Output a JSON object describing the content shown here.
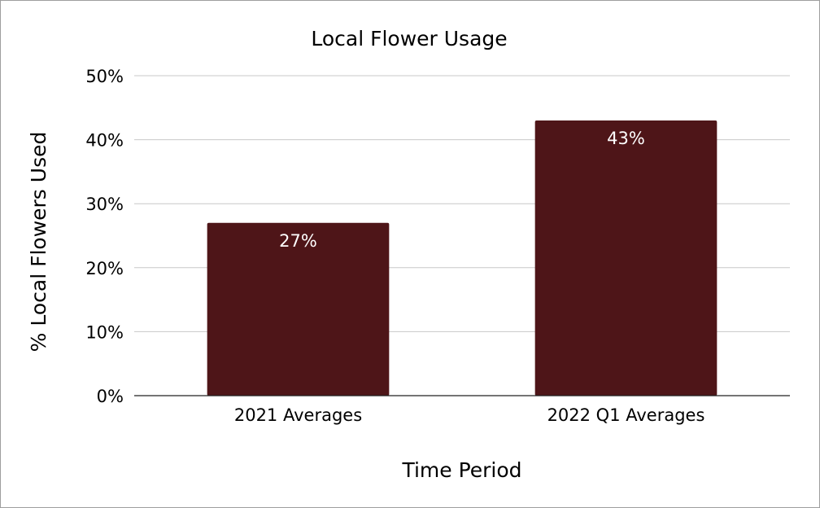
{
  "chart_data": {
    "type": "bar",
    "title": "Local Flower Usage",
    "xlabel": "Time Period",
    "ylabel": "% Local Flowers Used",
    "categories": [
      "2021 Averages",
      "2022 Q1 Averages"
    ],
    "values": [
      27,
      43
    ],
    "data_labels": [
      "27%",
      "43%"
    ],
    "ylim": [
      0,
      50
    ],
    "yticks": [
      0,
      10,
      20,
      30,
      40,
      50
    ],
    "ytick_labels": [
      "0%",
      "10%",
      "20%",
      "30%",
      "40%",
      "50%"
    ],
    "grid": true,
    "legend": "none",
    "bar_color": "#4e1518"
  }
}
